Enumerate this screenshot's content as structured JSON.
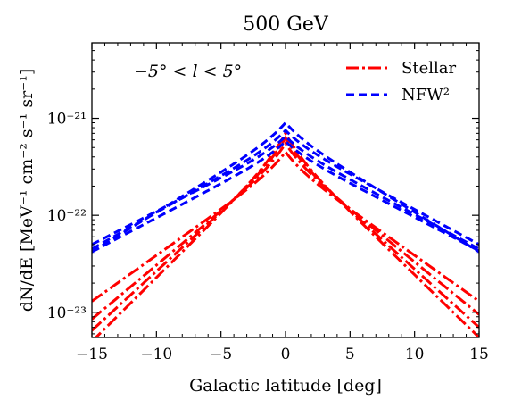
{
  "chart_data": {
    "type": "line",
    "title": "500 GeV",
    "xlabel": "Galactic latitude [deg]",
    "ylabel": "dN/dE [MeV⁻¹ cm⁻² s⁻¹ sr⁻¹]",
    "xlim": [
      -15,
      15
    ],
    "ylim": [
      5.5e-24,
      6e-21
    ],
    "yscale": "log",
    "x_ticks": [
      "−15",
      "−10",
      "−5",
      "0",
      "5",
      "10",
      "15"
    ],
    "x_tick_values": [
      -15,
      -10,
      -5,
      0,
      5,
      10,
      15
    ],
    "y_ticks": [
      "10⁻²¹",
      "10⁻²²",
      "10⁻²³"
    ],
    "y_tick_values": [
      1e-21,
      1e-22,
      1e-23
    ],
    "annotation": "−5° < l < 5°",
    "legend_position": "top-right",
    "legend": [
      {
        "label": "Stellar",
        "color": "#ff0000",
        "style": "dashdot"
      },
      {
        "label": "NFW²",
        "color": "#0000ff",
        "style": "dashed"
      }
    ],
    "series": [
      {
        "group": "Stellar",
        "color": "#ff0000",
        "style": "dashdot",
        "peak": 4.5e-22,
        "left_end": 1.3e-23,
        "right_end": 1.3e-23
      },
      {
        "group": "Stellar",
        "color": "#ff0000",
        "style": "dashdot",
        "peak": 5.5e-22,
        "left_end": 8.5e-24,
        "right_end": 9.5e-24
      },
      {
        "group": "Stellar",
        "color": "#ff0000",
        "style": "dashdot",
        "peak": 6.3e-22,
        "left_end": 6.5e-24,
        "right_end": 7e-24
      },
      {
        "group": "Stellar",
        "color": "#ff0000",
        "style": "dashdot",
        "peak": 7e-22,
        "left_end": 5e-24,
        "right_end": 5.5e-24
      },
      {
        "group": "NFW²",
        "color": "#0000ff",
        "style": "dashed",
        "peak": 9e-22,
        "left_end": 4.2e-23,
        "right_end": 4.2e-23
      },
      {
        "group": "NFW²",
        "color": "#0000ff",
        "style": "dashed",
        "peak": 7.5e-22,
        "left_end": 4.5e-23,
        "right_end": 5e-23
      },
      {
        "group": "NFW²",
        "color": "#0000ff",
        "style": "dashed",
        "peak": 6.5e-22,
        "left_end": 5e-23,
        "right_end": 4.5e-23
      },
      {
        "group": "NFW²",
        "color": "#0000ff",
        "style": "dashed",
        "peak": 5.8e-22,
        "left_end": 4.2e-23,
        "right_end": 4.3e-23
      }
    ]
  }
}
